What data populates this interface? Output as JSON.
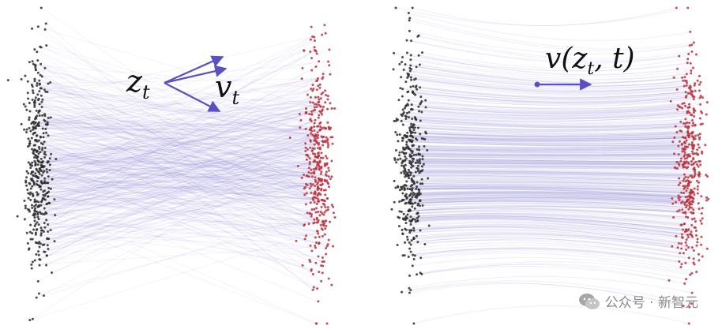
{
  "left_panel": {
    "label_position": "z",
    "label_position_sub": "t",
    "label_velocity": "v",
    "label_velocity_sub": "t"
  },
  "right_panel": {
    "label_field": "v(z",
    "label_field_sub": "t",
    "label_field_tail": ", t)"
  },
  "watermark": {
    "text": "公众号 · 新智元"
  },
  "colors": {
    "source_points": "#2b2b2b",
    "target_points": "#b8323c",
    "trajectory": "#6f63c9",
    "arrow": "#5a4fc4"
  }
}
